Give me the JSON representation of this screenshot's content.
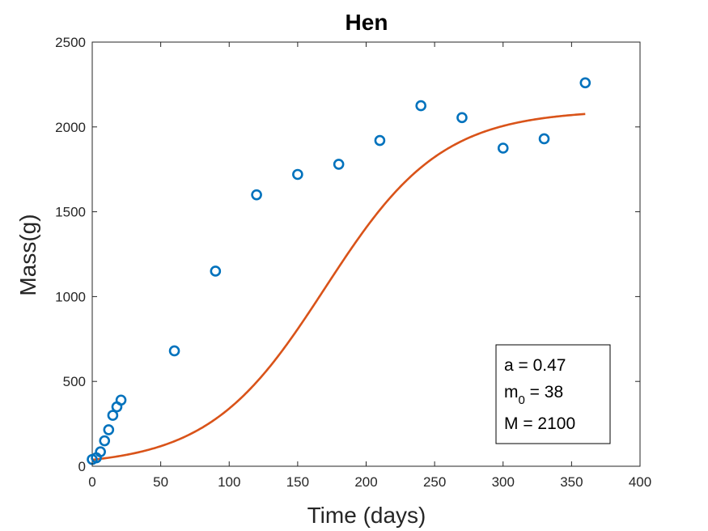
{
  "chart_data": {
    "type": "scatter",
    "title": "Hen",
    "xlabel": "Time (days)",
    "ylabel": "Mass(g)",
    "xlim": [
      0,
      400
    ],
    "ylim": [
      0,
      2500
    ],
    "xticks": [
      "0",
      "50",
      "100",
      "150",
      "200",
      "250",
      "300",
      "350",
      "400"
    ],
    "yticks": [
      "0",
      "500",
      "1000",
      "1500",
      "2000",
      "2500"
    ],
    "grid": false,
    "colors": {
      "points": "#0072BD",
      "curve": "#D95319"
    },
    "series": [
      {
        "type": "scatter",
        "marker": "circle-open",
        "x": [
          0,
          3,
          6,
          9,
          12,
          15,
          18,
          21,
          60,
          90,
          120,
          150,
          180,
          210,
          240,
          270,
          300,
          330,
          360
        ],
        "y": [
          40,
          50,
          85,
          150,
          215,
          300,
          350,
          390,
          680,
          1150,
          1600,
          1720,
          1780,
          1920,
          2125,
          2055,
          1875,
          1930,
          2260
        ]
      },
      {
        "type": "line",
        "model": "logistic",
        "params": {
          "a": 0.47,
          "m0": 38,
          "M": 2100
        },
        "x_range": [
          0,
          360
        ]
      }
    ],
    "annotation": {
      "lines": [
        {
          "main": "a = 0.47",
          "sub": "",
          "rest": ""
        },
        {
          "main": "m",
          "sub": "0",
          "rest": " = 38"
        },
        {
          "main": "M = 2100",
          "sub": "",
          "rest": ""
        }
      ]
    }
  }
}
